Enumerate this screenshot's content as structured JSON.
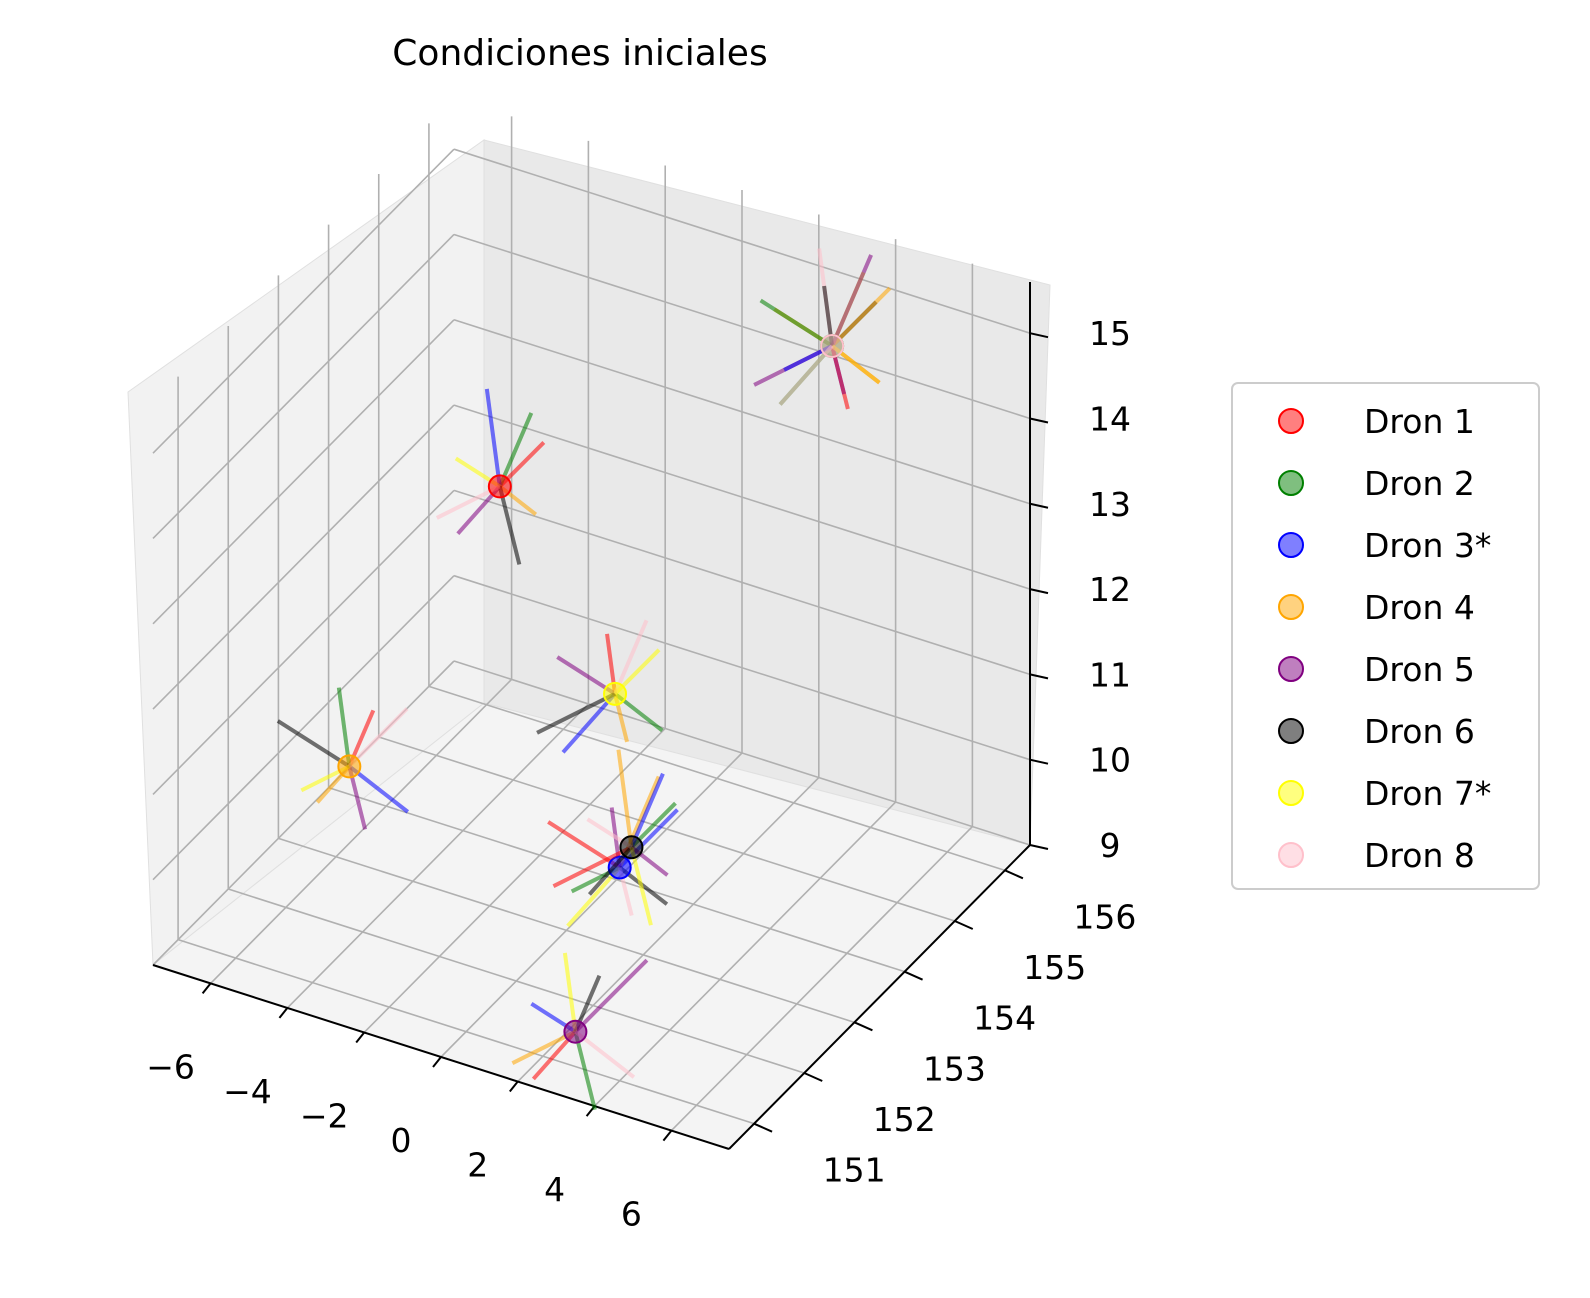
{
  "chart_data": {
    "type": "scatter",
    "projection": "3d",
    "title": "Condiciones iniciales",
    "xlabel": "",
    "ylabel": "",
    "zlabel": "",
    "xlim": [
      -7.5,
      7.5
    ],
    "ylim": [
      150.5,
      156.5
    ],
    "zlim": [
      9,
      15.6
    ],
    "x_ticks": [
      "−6",
      "−4",
      "−2",
      "0",
      "2",
      "4",
      "6"
    ],
    "y_ticks": [
      "151",
      "152",
      "153",
      "154",
      "155",
      "156"
    ],
    "z_ticks": [
      "9",
      "10",
      "11",
      "12",
      "13",
      "14",
      "15"
    ],
    "grid": true,
    "legend_position": "right",
    "series": [
      {
        "name": "Dron 1",
        "color": "#ff0000",
        "x": -5.0,
        "y": 155.5,
        "z": 12.0
      },
      {
        "name": "Dron 2",
        "color": "#008000",
        "x": 3.0,
        "y": 156.0,
        "z": 14.5
      },
      {
        "name": "Dron 3*",
        "color": "#0000ff",
        "x": 4.0,
        "y": 151.0,
        "z": 11.5
      },
      {
        "name": "Dron 4",
        "color": "#ffa500",
        "x": -5.0,
        "y": 152.5,
        "z": 10.5
      },
      {
        "name": "Dron 5",
        "color": "#800080",
        "x": 3.5,
        "y": 150.5,
        "z": 9.8
      },
      {
        "name": "Dron 6",
        "color": "#000000",
        "x": 3.0,
        "y": 152.0,
        "z": 11.0
      },
      {
        "name": "Dron 7*",
        "color": "#ffff00",
        "x": -2.0,
        "y": 155.5,
        "z": 10.0
      },
      {
        "name": "Dron 8",
        "color": "#ffc0cb",
        "x": 3.0,
        "y": 156.0,
        "z": 14.5
      }
    ]
  }
}
